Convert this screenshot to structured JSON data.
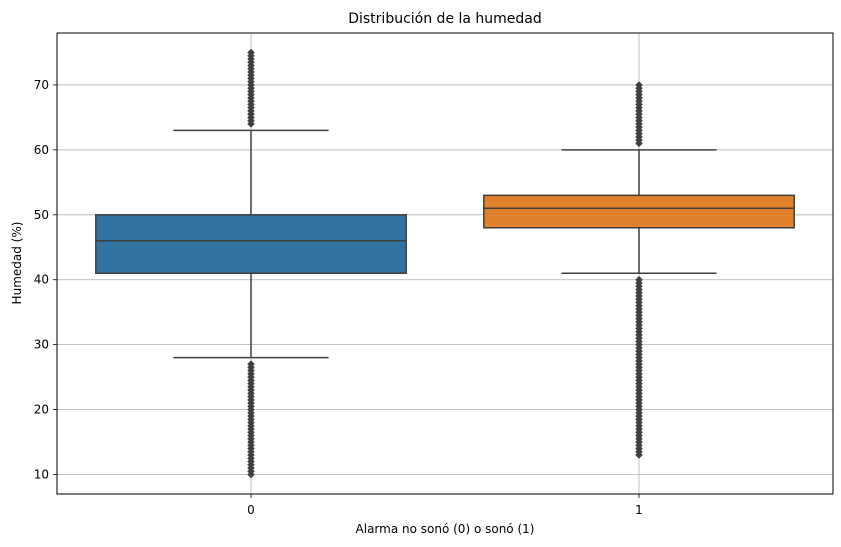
{
  "chart_data": {
    "type": "box",
    "title": "Distribución de la humedad",
    "xlabel": "Alarma no sonó (0) o sonó (1)",
    "ylabel": "Humedad (%)",
    "categories": [
      "0",
      "1"
    ],
    "yticks": [
      10,
      20,
      30,
      40,
      50,
      60,
      70
    ],
    "ylim": [
      7,
      78
    ],
    "grid": true,
    "colors": [
      "#3274a1",
      "#e1812c"
    ],
    "boxes": [
      {
        "category": "0",
        "q1": 41,
        "median": 46,
        "q3": 50,
        "whisker_low": 28,
        "whisker_high": 63,
        "outliers_low_range": [
          10,
          27
        ],
        "outliers_high_range": [
          64,
          75
        ]
      },
      {
        "category": "1",
        "q1": 48,
        "median": 51,
        "q3": 53,
        "whisker_low": 41,
        "whisker_high": 60,
        "outliers_low_range": [
          13,
          40
        ],
        "outliers_high_range": [
          61,
          70
        ]
      }
    ]
  }
}
